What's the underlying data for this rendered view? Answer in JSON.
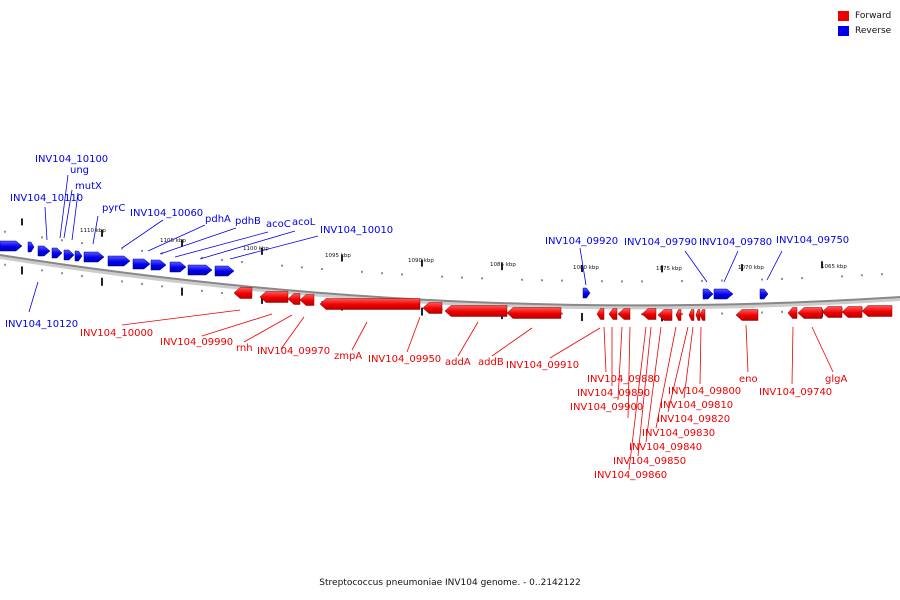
{
  "caption": "Streptococcus pneumoniae INV104 genome. - 0..2142122",
  "legend": {
    "forward_label": "Forward",
    "reverse_label": "Reverse",
    "forward_color": "#ee0000",
    "reverse_color": "#0000ee"
  },
  "scale_labels": [
    "1110 kbp",
    "1105 kbp",
    "1100 kbp",
    "1095 kbp",
    "1090 kbp",
    "1085 kbp",
    "1080 kbp",
    "1075 kbp",
    "1070 kbp",
    "1065 kbp"
  ],
  "reverse_gene_labels": [
    "INV104_10100",
    "ung",
    "mutX",
    "INV104_10110",
    "pyrC",
    "INV104_10060",
    "pdhA",
    "pdhB",
    "acoC",
    "acoL",
    "INV104_10010",
    "INV104_10120",
    "INV104_09920",
    "INV104_09790",
    "INV104_09780",
    "INV104_09750"
  ],
  "forward_gene_labels": [
    "INV104_10000",
    "INV104_09990",
    "rnh",
    "INV104_09970",
    "zmpA",
    "INV104_09950",
    "addA",
    "addB",
    "INV104_09910",
    "INV104_09880",
    "INV104_09890",
    "INV104_09900",
    "INV104_09860",
    "INV104_09850",
    "INV104_09840",
    "INV104_09830",
    "INV104_09820",
    "INV104_09810",
    "INV104_09800",
    "eno",
    "INV104_09740",
    "glgA"
  ]
}
